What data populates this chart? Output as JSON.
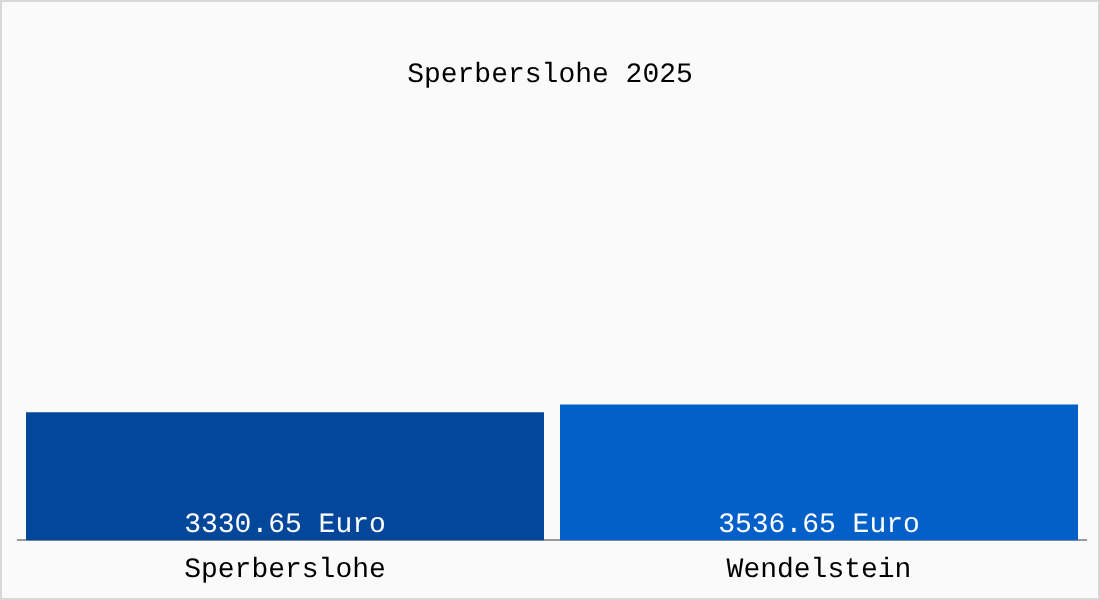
{
  "chart_data": {
    "type": "bar",
    "title": "Sperberslohe 2025",
    "categories": [
      "Sperberslohe",
      "Wendelstein"
    ],
    "values": [
      3330.65,
      3536.65
    ],
    "colors": [
      "#03479a",
      "#0360c8"
    ],
    "value_labels": [
      "3330.65 Euro",
      "3536.65 Euro"
    ],
    "ylim": [
      0,
      14000
    ],
    "grid": false,
    "legend": false
  }
}
